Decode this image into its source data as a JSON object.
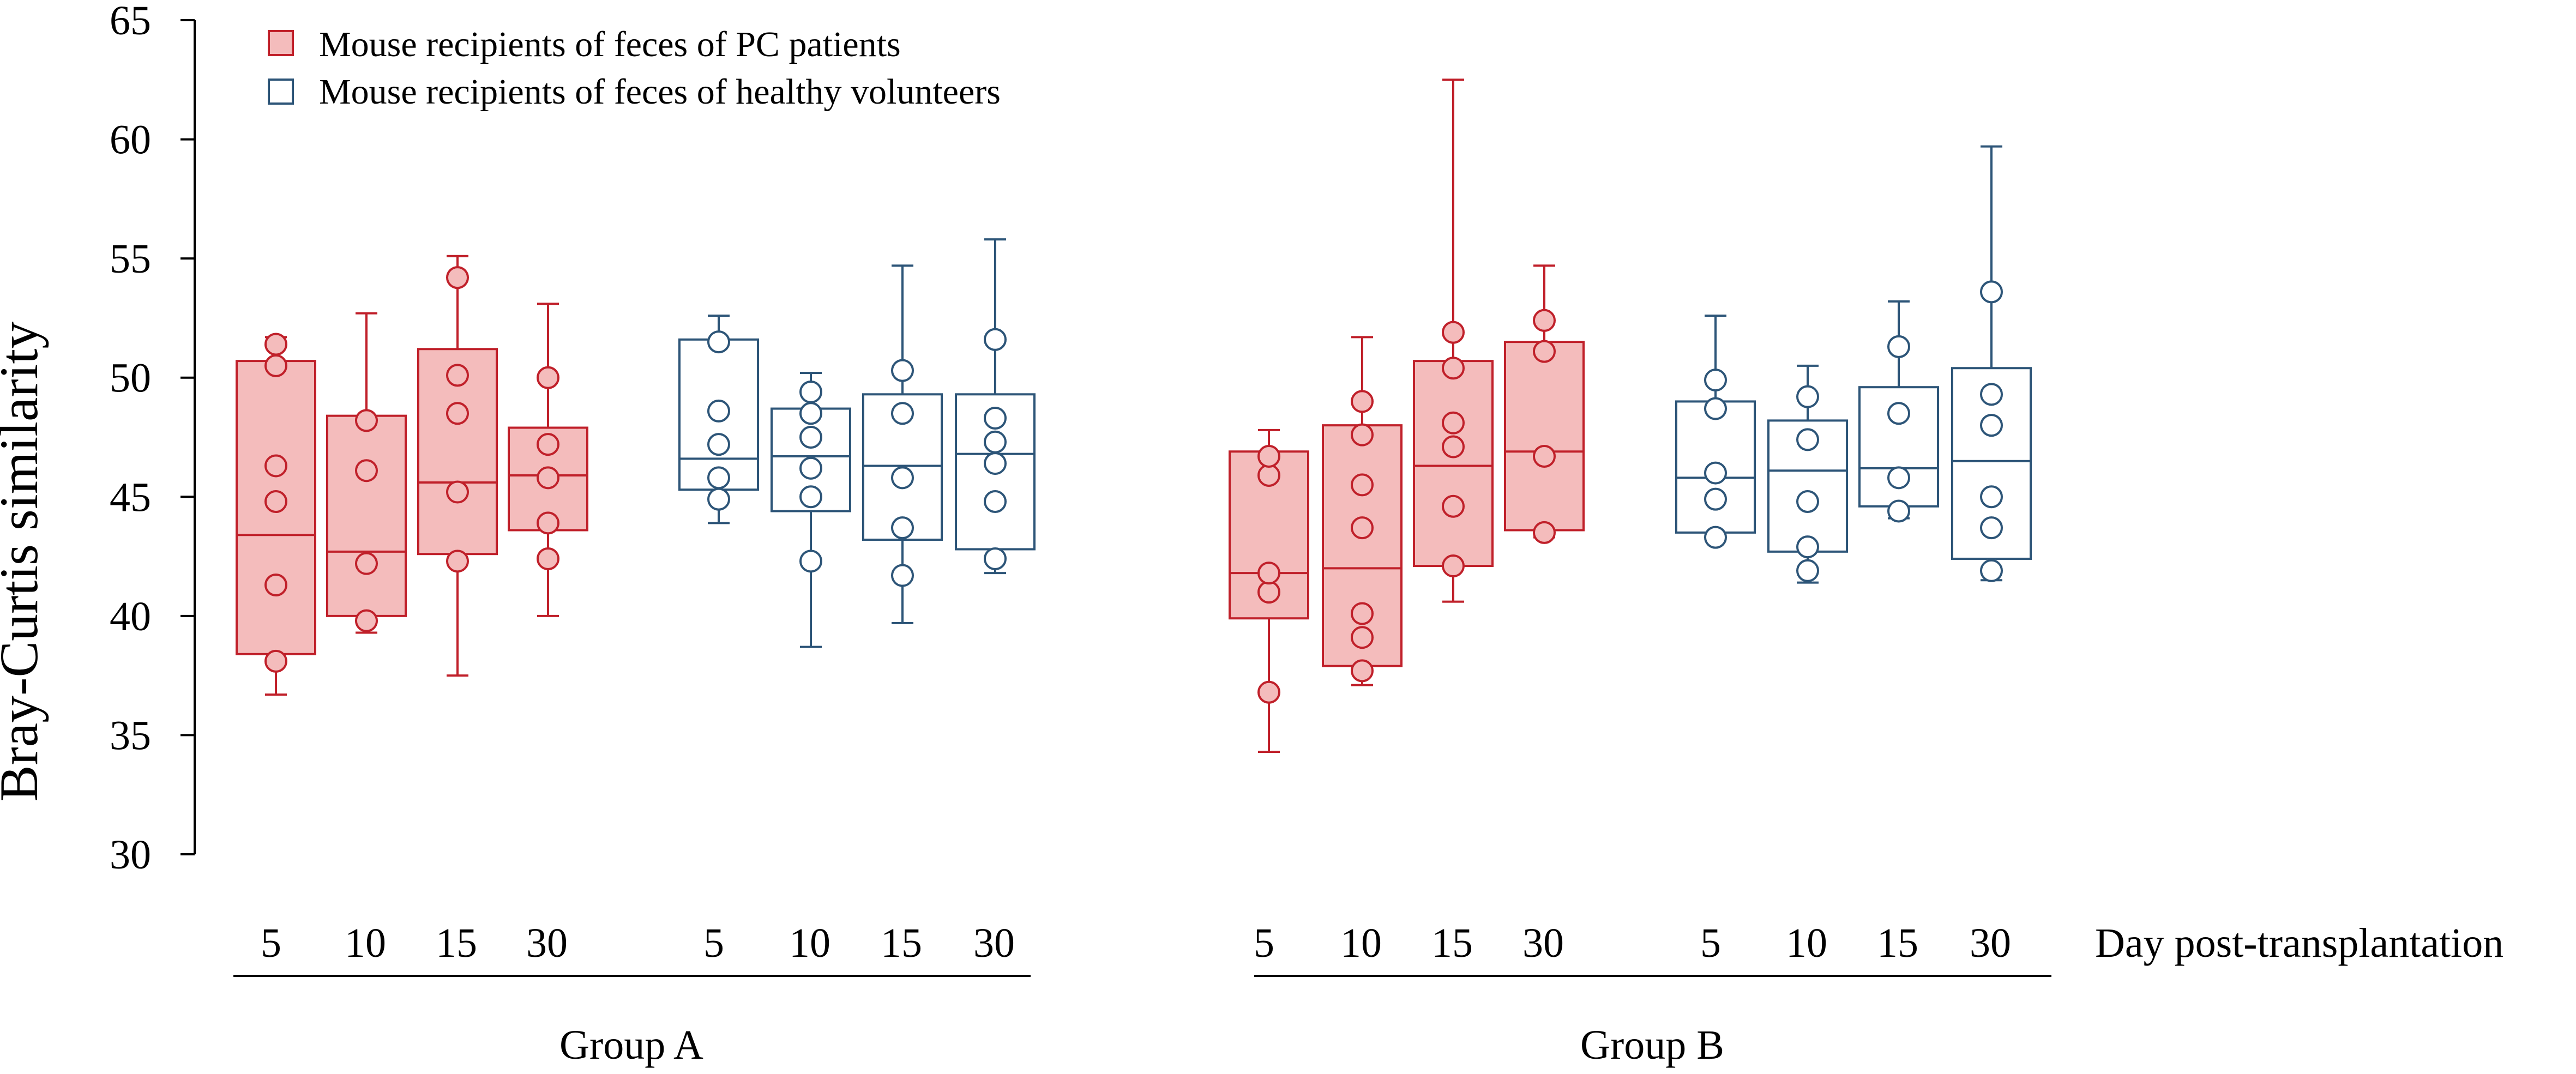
{
  "chart_data": {
    "type": "box",
    "title": "",
    "ylabel": "Bray-Curtis similarity",
    "xlabel": "Day post-transplantation",
    "ylim": [
      30,
      65
    ],
    "yticks": [
      30,
      35,
      40,
      45,
      50,
      55,
      60,
      65
    ],
    "legend": {
      "placement": "top-left",
      "entries": [
        {
          "series": "pc",
          "label": "Mouse recipients of feces of PC patients"
        },
        {
          "series": "healthy",
          "label": "Mouse recipients of feces of healthy volunteers"
        }
      ]
    },
    "colors": {
      "pc_stroke": "#c0202a",
      "pc_fill": "#f4bcbc",
      "healthy_stroke": "#2d5578",
      "healthy_fill": "#ffffff",
      "axis": "#000000"
    },
    "groups": [
      {
        "name": "Group A",
        "series": [
          {
            "series": "pc",
            "boxes": [
              {
                "day": "5",
                "whisker_low": 36.7,
                "q1": 38.4,
                "median": 43.4,
                "q3": 50.7,
                "whisker_high": 51.7,
                "points": [
                  38.1,
                  41.3,
                  44.8,
                  46.3,
                  50.5,
                  51.4
                ]
              },
              {
                "day": "10",
                "whisker_low": 39.3,
                "q1": 40.0,
                "median": 42.7,
                "q3": 48.4,
                "whisker_high": 52.7,
                "points": [
                  39.8,
                  42.2,
                  46.1,
                  48.2
                ]
              },
              {
                "day": "15",
                "whisker_low": 37.5,
                "q1": 42.6,
                "median": 45.6,
                "q3": 51.2,
                "whisker_high": 55.1,
                "points": [
                  42.3,
                  45.2,
                  48.5,
                  50.1,
                  54.2
                ]
              },
              {
                "day": "30",
                "whisker_low": 40.0,
                "q1": 43.6,
                "median": 45.9,
                "q3": 47.9,
                "whisker_high": 53.1,
                "points": [
                  42.4,
                  43.9,
                  45.8,
                  47.2,
                  50.0
                ]
              }
            ]
          },
          {
            "series": "healthy",
            "boxes": [
              {
                "day": "5",
                "whisker_low": 43.9,
                "q1": 45.3,
                "median": 46.6,
                "q3": 51.6,
                "whisker_high": 52.6,
                "points": [
                  44.9,
                  45.8,
                  47.2,
                  48.6,
                  51.5
                ]
              },
              {
                "day": "10",
                "whisker_low": 38.7,
                "q1": 44.4,
                "median": 46.7,
                "q3": 48.7,
                "whisker_high": 50.2,
                "points": [
                  42.3,
                  45.0,
                  46.2,
                  47.5,
                  48.5,
                  49.4
                ]
              },
              {
                "day": "15",
                "whisker_low": 39.7,
                "q1": 43.2,
                "median": 46.3,
                "q3": 49.3,
                "whisker_high": 54.7,
                "points": [
                  41.7,
                  43.7,
                  45.8,
                  48.5,
                  50.3
                ]
              },
              {
                "day": "30",
                "whisker_low": 41.8,
                "q1": 42.8,
                "median": 46.8,
                "q3": 49.3,
                "whisker_high": 55.8,
                "points": [
                  42.4,
                  44.8,
                  46.4,
                  47.3,
                  48.3,
                  51.6
                ]
              }
            ]
          }
        ]
      },
      {
        "name": "Group B",
        "series": [
          {
            "series": "pc",
            "boxes": [
              {
                "day": "5",
                "whisker_low": 34.3,
                "q1": 39.9,
                "median": 41.8,
                "q3": 46.9,
                "whisker_high": 47.8,
                "points": [
                  36.8,
                  41.0,
                  41.8,
                  45.9,
                  46.7
                ]
              },
              {
                "day": "10",
                "whisker_low": 37.1,
                "q1": 37.9,
                "median": 42.0,
                "q3": 48.0,
                "whisker_high": 51.7,
                "points": [
                  37.7,
                  39.1,
                  40.1,
                  43.7,
                  45.5,
                  47.6,
                  49.0
                ]
              },
              {
                "day": "15",
                "whisker_low": 40.6,
                "q1": 42.1,
                "median": 46.3,
                "q3": 50.7,
                "whisker_high": 62.5,
                "points": [
                  42.1,
                  44.6,
                  47.1,
                  48.1,
                  50.4,
                  51.9
                ]
              },
              {
                "day": "30",
                "whisker_low": 43.3,
                "q1": 43.6,
                "median": 46.9,
                "q3": 51.5,
                "whisker_high": 54.7,
                "points": [
                  43.5,
                  46.7,
                  51.1,
                  52.4
                ]
              }
            ]
          },
          {
            "series": "healthy",
            "boxes": [
              {
                "day": "5",
                "whisker_low": 43.2,
                "q1": 43.5,
                "median": 45.8,
                "q3": 49.0,
                "whisker_high": 52.6,
                "points": [
                  43.3,
                  44.9,
                  46.0,
                  48.7,
                  49.9
                ]
              },
              {
                "day": "10",
                "whisker_low": 41.4,
                "q1": 42.7,
                "median": 46.1,
                "q3": 48.2,
                "whisker_high": 50.5,
                "points": [
                  41.9,
                  42.9,
                  44.8,
                  47.4,
                  49.2
                ]
              },
              {
                "day": "15",
                "whisker_low": 44.1,
                "q1": 44.6,
                "median": 46.2,
                "q3": 49.6,
                "whisker_high": 53.2,
                "points": [
                  44.4,
                  45.8,
                  48.5,
                  51.3
                ]
              },
              {
                "day": "30",
                "whisker_low": 41.5,
                "q1": 42.4,
                "median": 46.5,
                "q3": 50.4,
                "whisker_high": 59.7,
                "points": [
                  41.9,
                  43.7,
                  45.0,
                  48.0,
                  49.3,
                  53.6
                ]
              }
            ]
          }
        ]
      }
    ]
  }
}
